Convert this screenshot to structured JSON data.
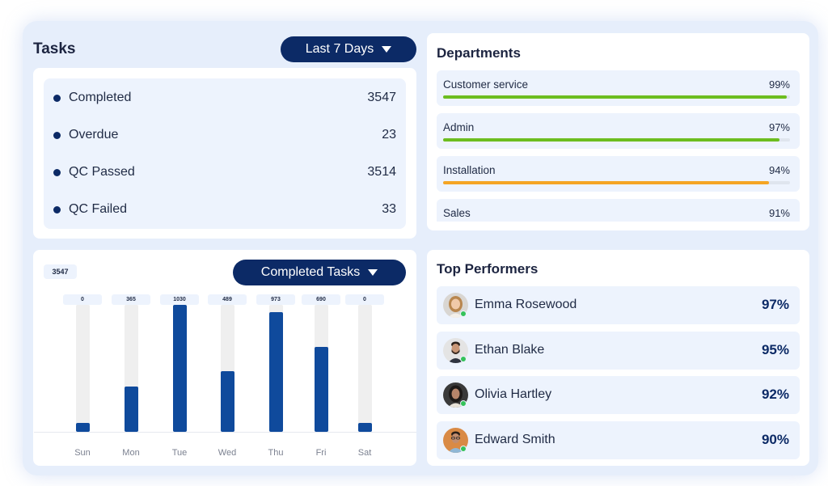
{
  "tasks": {
    "title": "Tasks",
    "range_label": "Last 7 Days",
    "stats": [
      {
        "label": "Completed",
        "value": "3547"
      },
      {
        "label": "Overdue",
        "value": "23"
      },
      {
        "label": "QC Passed",
        "value": "3514"
      },
      {
        "label": "QC Failed",
        "value": "33"
      }
    ]
  },
  "departments": {
    "title": "Departments",
    "items": [
      {
        "name": "Customer service",
        "percent_label": "99%",
        "percent": 99,
        "color": "#6cbd1f"
      },
      {
        "name": "Admin",
        "percent_label": "97%",
        "percent": 97,
        "color": "#6cbd1f"
      },
      {
        "name": "Installation",
        "percent_label": "94%",
        "percent": 94,
        "color": "#f5a524"
      },
      {
        "name": "Sales",
        "percent_label": "91%",
        "percent": 91,
        "color": "#6cbd1f"
      }
    ]
  },
  "completed_chart": {
    "total_label": "3547",
    "selector_label": "Completed Tasks"
  },
  "chart_data": {
    "type": "bar",
    "categories": [
      "Sun",
      "Mon",
      "Tue",
      "Wed",
      "Thu",
      "Fri",
      "Sat"
    ],
    "values": [
      0,
      365,
      1030,
      489,
      973,
      690,
      0
    ],
    "data_labels": [
      "0",
      "365",
      "1030",
      "489",
      "973",
      "690",
      "0"
    ],
    "ylim": [
      0,
      1030
    ],
    "title": "",
    "xlabel": "",
    "ylabel": "",
    "colors": {
      "bar": "#0f4a9c",
      "track": "#efefef"
    }
  },
  "top_performers": {
    "title": "Top Performers",
    "people": [
      {
        "name": "Emma Rosewood",
        "percent": "97%",
        "avatar": "woman-blonde"
      },
      {
        "name": "Ethan Blake",
        "percent": "95%",
        "avatar": "man-beard"
      },
      {
        "name": "Olivia Hartley",
        "percent": "92%",
        "avatar": "woman-dark"
      },
      {
        "name": "Edward Smith",
        "percent": "90%",
        "avatar": "man-glasses"
      }
    ]
  },
  "colors": {
    "accent": "#0c2a66",
    "background": "#e6eefb",
    "row_background": "#edf3fd",
    "online": "#35c25a"
  }
}
